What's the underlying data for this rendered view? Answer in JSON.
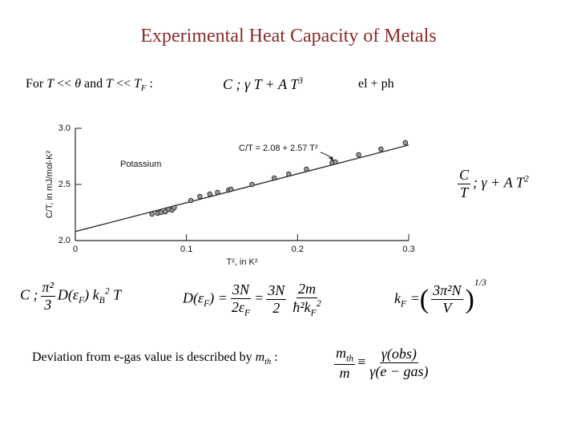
{
  "title": "Experimental Heat Capacity of Metals",
  "condition": [
    "For ",
    "T",
    " << ",
    "θ",
    " and ",
    "T",
    " << ",
    "T",
    "F",
    " :"
  ],
  "eq_low_t": [
    "C ; γ T + A T",
    "3"
  ],
  "eq_low_t_label": "el + ph",
  "eq_ratio": {
    "num": "C",
    "den": "T",
    "rest": "; γ + A T",
    "sup": "2"
  },
  "eq_cv": {
    "lhs": "C ;",
    "num": "π²",
    "den": "3",
    "parts": [
      "D(ε",
      "F",
      ") k",
      "B",
      "2",
      " T"
    ]
  },
  "eq_dos": {
    "lhs": [
      "D(ε",
      "F",
      ") ="
    ],
    "f1num": "3N",
    "f1den": [
      "2ε",
      "F"
    ],
    "eq": "=",
    "f2num": "3N",
    "f2den": "2",
    "f3num": "2m",
    "f3den": [
      "ħ²k",
      "F",
      "2"
    ]
  },
  "eq_kf": {
    "lhs": [
      "k",
      "F",
      " ="
    ],
    "num": "3π²N",
    "den": "V",
    "sup": "1/3"
  },
  "deviation": [
    "Deviation from e-gas value is described by ",
    "m",
    "th",
    " :"
  ],
  "eq_mass": {
    "num": [
      "m",
      "th"
    ],
    "den": "m",
    "rel": "≡",
    "rnum": "γ(obs)",
    "rden": "γ(e − gas)"
  },
  "chart_data": {
    "type": "scatter",
    "x_label": "T², in K²",
    "y_label": "C/T, in mJ/mol-K²",
    "annotations": [
      "Potassium",
      "C/T = 2.08 + 2.57 T²"
    ],
    "x": [
      0.069,
      0.074,
      0.077,
      0.081,
      0.084,
      0.087,
      0.089,
      0.104,
      0.112,
      0.121,
      0.128,
      0.138,
      0.14,
      0.159,
      0.179,
      0.192,
      0.208,
      0.231,
      0.234,
      0.255,
      0.275,
      0.297
    ],
    "values": [
      2.236,
      2.243,
      2.25,
      2.257,
      2.279,
      2.271,
      2.293,
      2.357,
      2.393,
      2.414,
      2.429,
      2.45,
      2.457,
      2.5,
      2.557,
      2.593,
      2.636,
      2.693,
      2.7,
      2.764,
      2.814,
      2.871
    ],
    "fit": {
      "x": [
        0,
        0.3
      ],
      "values": [
        2.08,
        2.851
      ]
    },
    "color": "#9a9a9a",
    "xlim": [
      0,
      0.3
    ],
    "ylim": [
      2.0,
      3.0
    ],
    "xticks": [
      0,
      0.1,
      0.2,
      0.3
    ],
    "yticks": [
      {
        "value": 2.0,
        "label": "2.0"
      },
      {
        "value": 2.5,
        "label": "2.5"
      },
      {
        "value": 3.0,
        "label": "3.0"
      }
    ]
  }
}
